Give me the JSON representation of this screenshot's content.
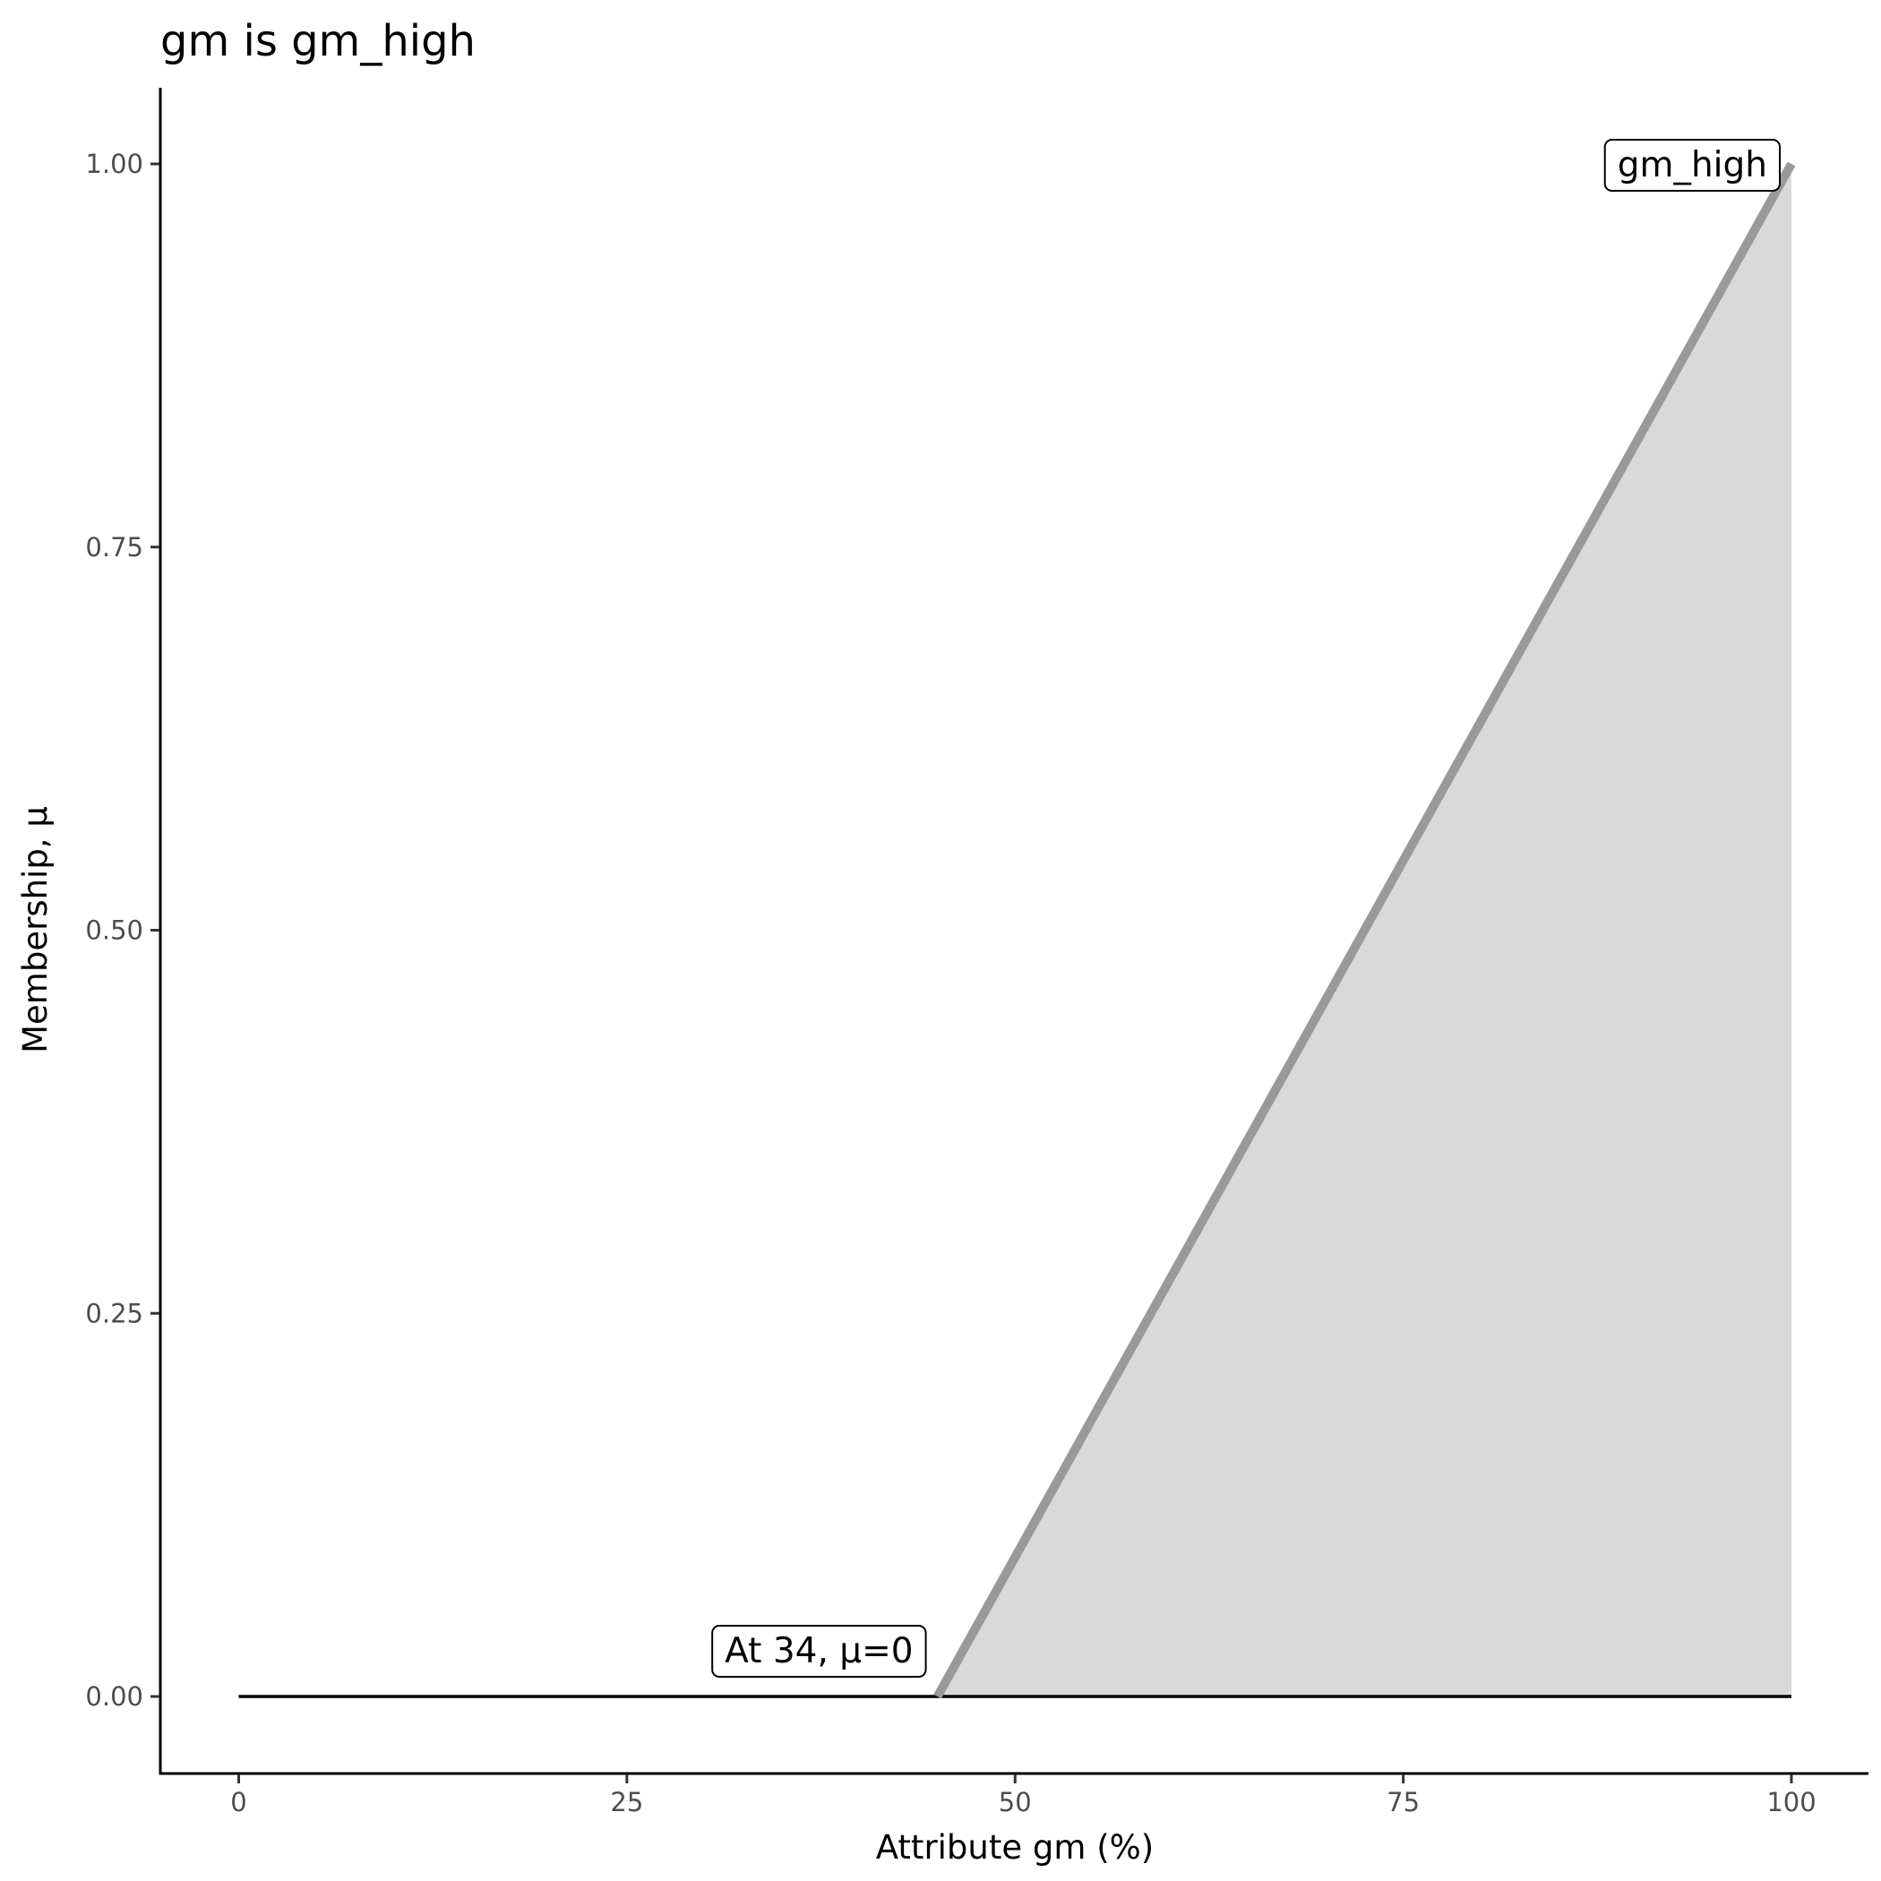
{
  "chart_data": {
    "type": "area",
    "title": "gm is gm_high",
    "xlabel": "Attribute gm (%)",
    "ylabel": "Membership, μ",
    "xlim": [
      -5,
      105
    ],
    "ylim": [
      -0.05,
      1.05
    ],
    "x_ticks": [
      0,
      25,
      50,
      75,
      100
    ],
    "x_tick_labels": [
      "0",
      "25",
      "50",
      "75",
      "100"
    ],
    "y_ticks": [
      0,
      0.25,
      0.5,
      0.75,
      1
    ],
    "y_tick_labels": [
      "0.00",
      "0.25",
      "0.50",
      "0.75",
      "1.00"
    ],
    "grid": false,
    "series": [
      {
        "name": "gm_high",
        "x": [
          0,
          45,
          100
        ],
        "y": [
          0,
          0,
          1
        ],
        "line_color": "#999999",
        "fill_color": "#d9d9d9"
      }
    ],
    "baseline": {
      "x": [
        0,
        100
      ],
      "y": [
        0,
        0
      ],
      "color": "#000000"
    },
    "annotations": [
      {
        "text": "gm_high",
        "x": 100,
        "y": 1,
        "anchor": "right"
      },
      {
        "text": "At 34, μ=0",
        "x": 45,
        "y": 0,
        "anchor": "right"
      }
    ]
  }
}
